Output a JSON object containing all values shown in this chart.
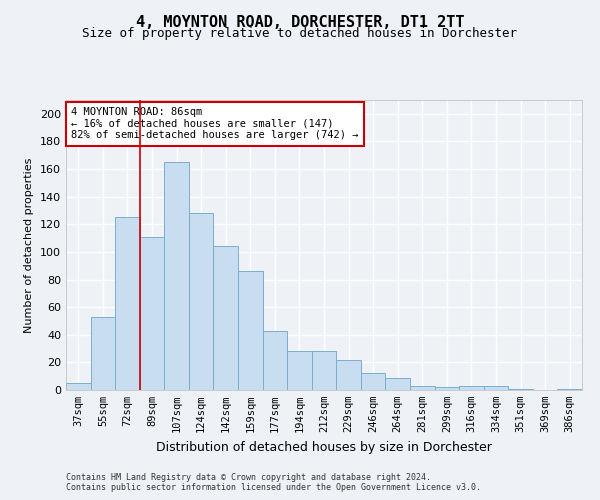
{
  "title1": "4, MOYNTON ROAD, DORCHESTER, DT1 2TT",
  "title2": "Size of property relative to detached houses in Dorchester",
  "xlabel": "Distribution of detached houses by size in Dorchester",
  "ylabel": "Number of detached properties",
  "categories": [
    "37sqm",
    "55sqm",
    "72sqm",
    "89sqm",
    "107sqm",
    "124sqm",
    "142sqm",
    "159sqm",
    "177sqm",
    "194sqm",
    "212sqm",
    "229sqm",
    "246sqm",
    "264sqm",
    "281sqm",
    "299sqm",
    "316sqm",
    "334sqm",
    "351sqm",
    "369sqm",
    "386sqm"
  ],
  "values": [
    5,
    53,
    125,
    111,
    165,
    128,
    104,
    86,
    43,
    28,
    28,
    22,
    12,
    9,
    3,
    2,
    3,
    3,
    1,
    0,
    1
  ],
  "bar_color": "#c9ddf0",
  "bar_edge_color": "#7aafcf",
  "ylim": [
    0,
    210
  ],
  "yticks": [
    0,
    20,
    40,
    60,
    80,
    100,
    120,
    140,
    160,
    180,
    200
  ],
  "red_line_x": 2.5,
  "annotation_line1": "4 MOYNTON ROAD: 86sqm",
  "annotation_line2": "← 16% of detached houses are smaller (147)",
  "annotation_line3": "82% of semi-detached houses are larger (742) →",
  "annotation_box_color": "#ffffff",
  "annotation_border_color": "#cc0000",
  "footer1": "Contains HM Land Registry data © Crown copyright and database right 2024.",
  "footer2": "Contains public sector information licensed under the Open Government Licence v3.0.",
  "background_color": "#eef2f7",
  "grid_color": "#ffffff",
  "title1_fontsize": 11,
  "title2_fontsize": 9,
  "ylabel_fontsize": 8,
  "xlabel_fontsize": 9,
  "tick_fontsize": 7.5,
  "ytick_fontsize": 8,
  "annot_fontsize": 7.5,
  "footer_fontsize": 6
}
